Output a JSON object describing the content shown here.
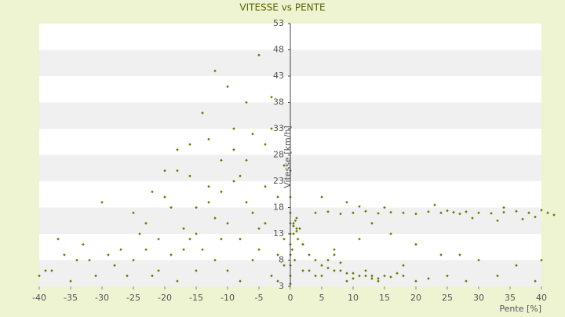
{
  "chart_data": {
    "type": "scatter",
    "title": "VITESSE vs PENTE",
    "x_label": "Pente [%]",
    "y_label": "Vitesse [km/h]",
    "color": "#6b7b00",
    "xlim": [
      -40,
      40
    ],
    "ylim": [
      3,
      53
    ],
    "xticks": [
      -40,
      -35,
      -30,
      -25,
      -20,
      -15,
      -10,
      -5,
      0,
      5,
      10,
      15,
      20,
      25,
      30,
      35,
      40
    ],
    "yticks": [
      3,
      8,
      13,
      18,
      23,
      28,
      33,
      38,
      43,
      48,
      53
    ],
    "banded": true,
    "x": [
      4,
      6,
      8,
      10,
      12,
      14,
      16,
      18,
      20,
      22,
      24,
      25,
      26,
      27,
      28,
      30,
      32,
      34,
      36,
      38,
      40,
      41,
      42,
      23,
      29,
      33,
      37,
      39,
      15,
      11,
      1,
      2,
      3,
      4,
      5,
      6,
      7,
      8,
      9,
      10,
      11,
      12,
      13,
      14,
      15,
      16,
      17,
      18,
      3,
      5,
      6,
      8,
      10,
      12,
      14,
      2,
      4,
      7,
      9,
      13,
      0,
      0,
      0,
      0,
      0,
      0,
      0,
      0,
      0,
      0,
      0.5,
      0.5,
      1,
      1,
      0.5,
      1.5,
      0.3,
      0.7,
      1.2,
      0.8,
      -25,
      -23,
      -22,
      -21,
      -20,
      -19,
      -18,
      -17,
      -16,
      -15,
      -14,
      -13,
      -12,
      -11,
      -10,
      -9,
      -8,
      -7,
      -6,
      -5,
      -4,
      -3,
      -2,
      -1,
      -14,
      -12,
      -10,
      -8,
      -6,
      -4,
      -3,
      -2,
      -1,
      -5,
      -7,
      -9,
      -11,
      -13,
      -15,
      -17,
      -19,
      -21,
      -23,
      -18,
      -16,
      -12,
      -10,
      -8,
      -6,
      -4,
      -2,
      -1,
      -3,
      -5,
      -7,
      -9,
      -11,
      -13,
      -15,
      -20,
      -24,
      -22,
      -26,
      -27,
      -28,
      -30,
      -32,
      -35,
      -37,
      -38,
      -40,
      -39,
      -36,
      -34,
      -33,
      -31,
      -29,
      -25,
      -18,
      -16,
      20,
      22,
      25,
      28,
      30,
      33,
      36,
      39,
      40,
      27,
      5,
      7,
      9,
      11,
      13,
      16,
      18,
      20,
      24,
      34
    ],
    "values": [
      17,
      17.2,
      16.8,
      17,
      17.3,
      16.9,
      17.1,
      17,
      16.8,
      17.2,
      17,
      17.4,
      17.1,
      16.8,
      17.2,
      17,
      16.9,
      17.1,
      17.3,
      17,
      17.5,
      17,
      16.6,
      18.5,
      16,
      15.5,
      15.8,
      16.2,
      18,
      18.2,
      14,
      11,
      9,
      8,
      7,
      6.5,
      6,
      6,
      5.5,
      5.5,
      5,
      5,
      5,
      4.5,
      5,
      4.8,
      5.5,
      5,
      6,
      5,
      8,
      7.5,
      4.5,
      6,
      4,
      6,
      5,
      9,
      4,
      4.5,
      3.5,
      5,
      7,
      9,
      11,
      13,
      15,
      17,
      20,
      25,
      15,
      14.5,
      16,
      13.5,
      13,
      14,
      10,
      8,
      12,
      15.5,
      8,
      15,
      5,
      12,
      20,
      9,
      25,
      14,
      30,
      18,
      36,
      22,
      44,
      27,
      41,
      33,
      24,
      38,
      17,
      47,
      30,
      39,
      20,
      12,
      10,
      16,
      6,
      12,
      8,
      22,
      5,
      9,
      26,
      14,
      19,
      29,
      21,
      31,
      6,
      10,
      18,
      6,
      10,
      29,
      24,
      8,
      15,
      4,
      32,
      15,
      4,
      7,
      33,
      10,
      27,
      23,
      12,
      19,
      13,
      25,
      13,
      21,
      5,
      10,
      7,
      19,
      8,
      4,
      12,
      6,
      5,
      6,
      9,
      8,
      11,
      5,
      9,
      17,
      4,
      12,
      4,
      4.5,
      5,
      4,
      8,
      5,
      7,
      4,
      8,
      9,
      20,
      10,
      19,
      12,
      15,
      13,
      7,
      11,
      9,
      18
    ]
  }
}
